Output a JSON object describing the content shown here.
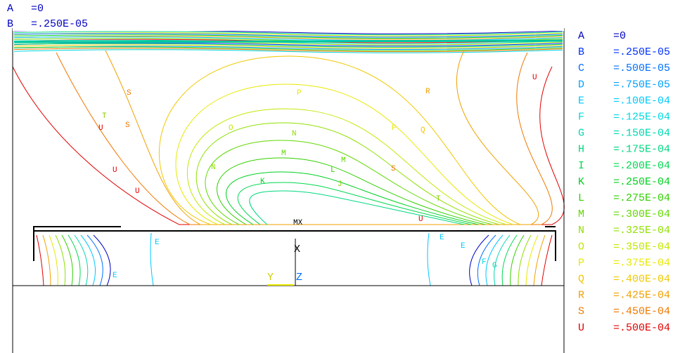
{
  "header": [
    {
      "letter": "A",
      "value": "=0"
    },
    {
      "letter": "B",
      "value": "=.250E-05"
    }
  ],
  "legend": [
    {
      "letter": "A",
      "value": "=0",
      "color": "#0000c0"
    },
    {
      "letter": "B",
      "value": "=.250E-05",
      "color": "#0030ff"
    },
    {
      "letter": "C",
      "value": "=.500E-05",
      "color": "#0070ff"
    },
    {
      "letter": "D",
      "value": "=.750E-05",
      "color": "#00a0ff"
    },
    {
      "letter": "E",
      "value": "=.100E-04",
      "color": "#00c8ff"
    },
    {
      "letter": "F",
      "value": "=.125E-04",
      "color": "#00d8e0"
    },
    {
      "letter": "G",
      "value": "=.150E-04",
      "color": "#00d8b0"
    },
    {
      "letter": "H",
      "value": "=.175E-04",
      "color": "#00d880"
    },
    {
      "letter": "I",
      "value": "=.200E-04",
      "color": "#00d850"
    },
    {
      "letter": "K",
      "value": "=.250E-04",
      "color": "#00d020"
    },
    {
      "letter": "L",
      "value": "=.275E-04",
      "color": "#30d000"
    },
    {
      "letter": "M",
      "value": "=.300E-04",
      "color": "#60d800"
    },
    {
      "letter": "N",
      "value": "=.325E-04",
      "color": "#90e000"
    },
    {
      "letter": "O",
      "value": "=.350E-04",
      "color": "#c0e800"
    },
    {
      "letter": "P",
      "value": "=.375E-04",
      "color": "#e8e800"
    },
    {
      "letter": "Q",
      "value": "=.400E-04",
      "color": "#f0c800"
    },
    {
      "letter": "R",
      "value": "=.425E-04",
      "color": "#f0a000"
    },
    {
      "letter": "S",
      "value": "=.450E-04",
      "color": "#f07800"
    },
    {
      "letter": "U",
      "value": "=.500E-04",
      "color": "#e00000"
    }
  ],
  "plot": {
    "max_label": "MX",
    "axis_x": "X",
    "axis_y": "Y",
    "axis_z": "Z",
    "contour_labels": [
      "U",
      "U",
      "U",
      "T",
      "S",
      "S",
      "P",
      "N",
      "M",
      "L",
      "K",
      "J",
      "N",
      "O",
      "M",
      "P",
      "Q",
      "R",
      "S",
      "T",
      "U",
      "U",
      "E",
      "E",
      "E",
      "E",
      "F",
      "G"
    ]
  }
}
